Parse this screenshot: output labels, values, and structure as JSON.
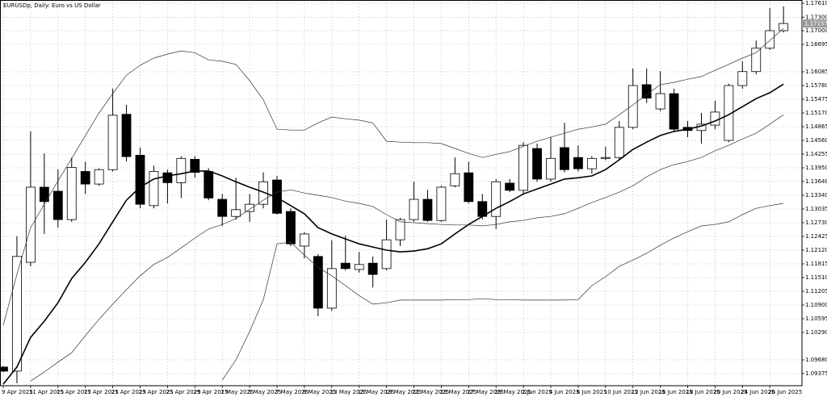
{
  "chart_data": {
    "type": "candlestick",
    "title": "EURUSDp, Daily: Euro vs US Dollar",
    "categories": [
      "9 Apr 2025",
      null,
      "11 Apr 2025",
      null,
      "15 Apr 2025",
      null,
      "17 Apr 2025",
      null,
      "21 Apr 2025",
      null,
      "23 Apr 2025",
      null,
      "25 Apr 2025",
      null,
      "29 Apr 2025",
      null,
      "1 May 2025",
      null,
      "5 May 2025",
      null,
      "7 May 2025",
      null,
      "9 May 2025",
      null,
      "13 May 2025",
      null,
      "15 May 2025",
      null,
      "19 May 2025",
      null,
      "21 May 2025",
      null,
      "23 May 2025",
      null,
      "27 May 2025",
      null,
      "29 May 2025",
      null,
      "2 Jun 2025",
      null,
      "4 Jun 2025",
      null,
      "6 Jun 2025",
      null,
      "10 Jun 2025",
      null,
      "12 Jun 2025",
      null,
      "16 Jun 2025",
      null,
      "18 Jun 2025",
      null,
      "20 Jun 2025",
      null,
      "24 Jun 2025",
      null,
      "26 Jun 2025",
      null
    ],
    "open": [
      1.0952,
      1.0943,
      1.1185,
      1.1352,
      1.1343,
      1.128,
      1.1387,
      1.1359,
      1.1391,
      1.1514,
      1.1423,
      1.1311,
      1.1384,
      1.1362,
      1.1414,
      1.1387,
      1.1325,
      1.1287,
      1.1298,
      1.1314,
      1.1368,
      1.1298,
      1.1221,
      1.1198,
      1.1083,
      1.1183,
      1.1169,
      1.1183,
      1.1171,
      1.1235,
      1.128,
      1.1325,
      1.1278,
      1.1355,
      1.1384,
      1.132,
      1.1287,
      1.1361,
      1.1345,
      1.1438,
      1.137,
      1.144,
      1.1418,
      1.1393,
      1.1416,
      1.1418,
      1.1485,
      1.158,
      1.1526,
      1.156,
      1.1485,
      1.1478,
      1.149,
      1.1456,
      1.1578,
      1.1609,
      1.1661,
      1.17
    ],
    "high": [
      1.0954,
      1.1243,
      1.1476,
      1.1427,
      1.1391,
      1.1418,
      1.1409,
      1.1394,
      1.1571,
      1.1535,
      1.144,
      1.14,
      1.1391,
      1.1421,
      1.1421,
      1.1394,
      1.1337,
      1.1373,
      1.1337,
      1.1385,
      1.1377,
      1.1305,
      1.1252,
      1.1203,
      1.1234,
      1.1244,
      1.1208,
      1.1198,
      1.128,
      1.1284,
      1.1364,
      1.1346,
      1.1355,
      1.1418,
      1.1409,
      1.1337,
      1.137,
      1.137,
      1.1452,
      1.1449,
      1.1463,
      1.1495,
      1.1445,
      1.1421,
      1.1442,
      1.1499,
      1.1616,
      1.1616,
      1.161,
      1.1571,
      1.1499,
      1.1517,
      1.1544,
      1.1582,
      1.1632,
      1.1678,
      1.175,
      1.1754
    ],
    "low": [
      1.0941,
      1.0916,
      1.1176,
      1.1248,
      1.1262,
      1.1275,
      1.1337,
      1.1355,
      1.1387,
      1.1409,
      1.1305,
      1.1305,
      1.1316,
      1.1328,
      1.1373,
      1.1323,
      1.1266,
      1.128,
      1.1275,
      1.1305,
      1.1291,
      1.1221,
      1.1194,
      1.1065,
      1.1077,
      1.1167,
      1.1162,
      1.1129,
      1.1167,
      1.1221,
      1.1275,
      1.1275,
      1.1275,
      1.1352,
      1.1316,
      1.128,
      1.1259,
      1.1341,
      1.1337,
      1.1364,
      1.1364,
      1.1385,
      1.1387,
      1.1382,
      1.1412,
      1.1412,
      1.1481,
      1.1539,
      1.1521,
      1.1476,
      1.1463,
      1.1449,
      1.1481,
      1.1452,
      1.1571,
      1.1603,
      1.1657,
      1.1696
    ],
    "close": [
      1.0943,
      1.1198,
      1.1352,
      1.132,
      1.128,
      1.1396,
      1.1359,
      1.1391,
      1.1512,
      1.142,
      1.1314,
      1.1387,
      1.1362,
      1.1416,
      1.1385,
      1.1328,
      1.1287,
      1.1302,
      1.1314,
      1.1364,
      1.1294,
      1.1226,
      1.1248,
      1.1083,
      1.1171,
      1.1171,
      1.118,
      1.1158,
      1.1235,
      1.128,
      1.1325,
      1.1278,
      1.1352,
      1.1382,
      1.132,
      1.1287,
      1.1364,
      1.1345,
      1.1445,
      1.137,
      1.1416,
      1.1391,
      1.1393,
      1.1416,
      1.1418,
      1.1485,
      1.1578,
      1.155,
      1.156,
      1.1481,
      1.1478,
      1.1492,
      1.1519,
      1.1578,
      1.1609,
      1.1661,
      1.17,
      1.1716
    ],
    "up_color": "#ffffff",
    "down_color": "#000000",
    "outline_color": "#000000",
    "lines": [
      {
        "color": "#000000",
        "line_width": 1.6,
        "values": [
          1.0914,
          1.0952,
          1.1018,
          1.1054,
          1.1095,
          1.1149,
          1.1185,
          1.1226,
          1.1275,
          1.1323,
          1.1352,
          1.137,
          1.1377,
          1.1382,
          1.1388,
          1.1388,
          1.1377,
          1.1364,
          1.1352,
          1.1341,
          1.1329,
          1.1311,
          1.1293,
          1.1262,
          1.1248,
          1.1237,
          1.1226,
          1.1219,
          1.1212,
          1.1208,
          1.121,
          1.1215,
          1.1226,
          1.1248,
          1.1269,
          1.1287,
          1.1305,
          1.132,
          1.1337,
          1.1348,
          1.1359,
          1.137,
          1.1373,
          1.1377,
          1.1391,
          1.1413,
          1.1436,
          1.1452,
          1.1467,
          1.1476,
          1.1481,
          1.1488,
          1.1499,
          1.1513,
          1.1531,
          1.1549,
          1.1562,
          1.1581
        ]
      },
      {
        "color": "#333333",
        "line_width": 0.7,
        "values": [
          1.1045,
          1.1158,
          1.1262,
          1.1314,
          1.1366,
          1.1416,
          1.1467,
          1.1517,
          1.156,
          1.1601,
          1.1623,
          1.1639,
          1.1648,
          1.1655,
          1.1651,
          1.1635,
          1.1632,
          1.1625,
          1.1589,
          1.1546,
          1.1481,
          1.1479,
          1.1479,
          1.1495,
          1.1508,
          1.1504,
          1.1501,
          1.1495,
          1.1454,
          1.1452,
          1.1451,
          1.1451,
          1.1449,
          1.1438,
          1.1427,
          1.1418,
          1.1425,
          1.1431,
          1.1443,
          1.1454,
          1.1463,
          1.1472,
          1.1481,
          1.1486,
          1.1492,
          1.1513,
          1.1535,
          1.1558,
          1.158,
          1.1585,
          1.1592,
          1.1598,
          1.1612,
          1.1625,
          1.1639,
          1.1651,
          1.1678,
          1.1705
        ]
      },
      {
        "color": "#333333",
        "line_width": 0.7,
        "values": [
          null,
          null,
          1.0921,
          1.0941,
          1.0963,
          1.0984,
          1.1022,
          1.1058,
          1.1092,
          1.1124,
          1.1155,
          1.118,
          1.1196,
          1.1217,
          1.1239,
          1.1259,
          1.1269,
          1.1282,
          1.1303,
          1.1323,
          1.1341,
          1.1346,
          1.1339,
          1.1334,
          1.1329,
          1.1321,
          1.1316,
          1.1309,
          1.1291,
          1.1275,
          1.1273,
          1.1271,
          1.1269,
          1.1268,
          1.1268,
          1.1266,
          1.1269,
          1.1275,
          1.1278,
          1.1284,
          1.1287,
          1.1293,
          1.1305,
          1.1318,
          1.1329,
          1.1341,
          1.1355,
          1.1375,
          1.1391,
          1.1402,
          1.1409,
          1.1418,
          1.1433,
          1.1445,
          1.1459,
          1.1472,
          1.1492,
          1.1513
        ]
      },
      {
        "color": "#333333",
        "line_width": 0.7,
        "values": [
          null,
          null,
          null,
          null,
          null,
          null,
          null,
          null,
          null,
          null,
          null,
          null,
          null,
          null,
          null,
          null,
          1.0923,
          1.0968,
          1.1031,
          1.1102,
          1.1226,
          1.123,
          1.1201,
          1.1174,
          1.1155,
          1.1133,
          1.1111,
          1.1092,
          1.1095,
          1.1101,
          1.1101,
          1.1101,
          1.1101,
          1.1102,
          1.1102,
          1.1104,
          1.1102,
          1.1102,
          1.1101,
          1.1101,
          1.1101,
          1.1101,
          1.1102,
          1.1133,
          1.1153,
          1.1176,
          1.119,
          1.1205,
          1.1223,
          1.1239,
          1.1253,
          1.1266,
          1.1269,
          1.1275,
          1.1291,
          1.1305,
          1.1311,
          1.1316
        ]
      }
    ],
    "last_price": 1.17157,
    "ylim": [
      1.09106,
      1.17682
    ],
    "yticks": [
      {
        "value": 1.1761,
        "label": "1.17610"
      },
      {
        "value": 1.173,
        "label": "1.17300"
      },
      {
        "value": 1.17,
        "label": "1.17000"
      },
      1.16695,
      1.16085,
      {
        "value": 1.1578,
        "label": "1.15780"
      },
      1.15475,
      {
        "value": 1.1517,
        "label": "1.15170"
      },
      1.14865,
      {
        "value": 1.1456,
        "label": "1.14560"
      },
      1.14255,
      {
        "value": 1.1395,
        "label": "1.13950"
      },
      1.13648,
      {
        "value": 1.1334,
        "label": "1.13340"
      },
      1.13035,
      {
        "value": 1.1273,
        "label": "1.12730"
      },
      1.12425,
      {
        "value": 1.1212,
        "label": "1.12120"
      },
      1.11815,
      {
        "value": 1.1151,
        "label": "1.11510"
      },
      1.11205,
      {
        "value": 1.109,
        "label": "1.10900"
      },
      1.10595,
      {
        "value": 1.1029,
        "label": "1.10290"
      },
      {
        "value": 1.0968,
        "label": "1.09680"
      },
      1.09375
    ],
    "grid": true
  }
}
